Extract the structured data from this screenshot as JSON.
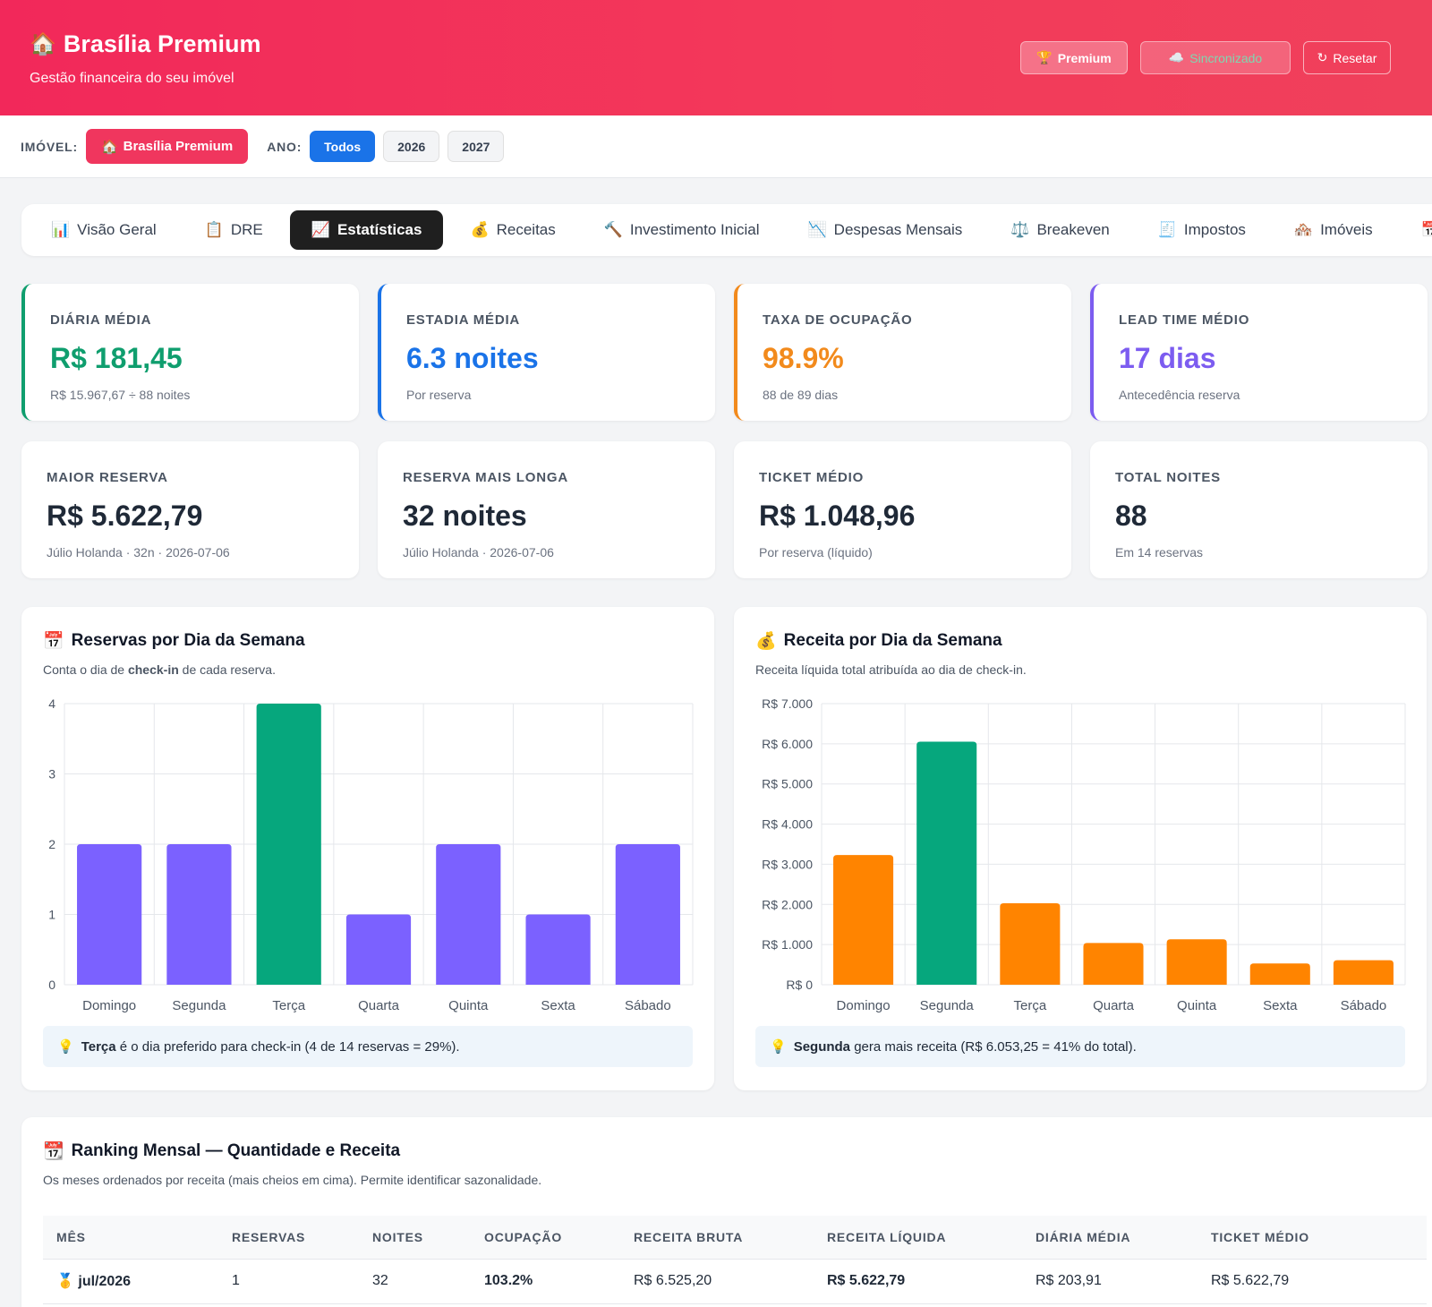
{
  "header": {
    "brand_icon": "🏠",
    "title": "Brasília Premium",
    "subtitle": "Gestão financeira do seu imóvel",
    "buttons": {
      "premium_icon": "🏆",
      "premium": "Premium",
      "sync_icon": "☁️",
      "sync": "Sincronizado",
      "reset_icon": "↻",
      "reset": "Resetar"
    }
  },
  "filters": {
    "property_label": "IMÓVEL:",
    "property_icon": "🏠",
    "property": "Brasília Premium",
    "year_label": "ANO:",
    "years": [
      "Todos",
      "2026",
      "2027"
    ],
    "selected_year": "Todos"
  },
  "tabs": [
    {
      "icon": "📊",
      "label": "Visão Geral"
    },
    {
      "icon": "📋",
      "label": "DRE"
    },
    {
      "icon": "📈",
      "label": "Estatísticas"
    },
    {
      "icon": "💰",
      "label": "Receitas"
    },
    {
      "icon": "🔨",
      "label": "Investimento Inicial"
    },
    {
      "icon": "📉",
      "label": "Despesas Mensais"
    },
    {
      "icon": "⚖️",
      "label": "Breakeven"
    },
    {
      "icon": "🧾",
      "label": "Impostos"
    },
    {
      "icon": "🏘️",
      "label": "Imóveis"
    },
    {
      "icon": "📅",
      "label": ""
    }
  ],
  "active_tab": "Estatísticas",
  "kpis_top": [
    {
      "label": "DIÁRIA MÉDIA",
      "value": "R$ 181,45",
      "sub": "R$ 15.967,67 ÷ 88 noites",
      "color": "#0f9e6e"
    },
    {
      "label": "ESTADIA MÉDIA",
      "value": "6.3 noites",
      "sub": "Por reserva",
      "color": "#1a73e8"
    },
    {
      "label": "TAXA DE OCUPAÇÃO",
      "value": "98.9%",
      "sub": "88 de 89 dias",
      "color": "#f28a1c"
    },
    {
      "label": "LEAD TIME MÉDIO",
      "value": "17 dias",
      "sub": "Antecedência reserva",
      "color": "#7c5cf0"
    }
  ],
  "kpis_bottom": [
    {
      "label": "MAIOR RESERVA",
      "value": "R$ 5.622,79",
      "sub": "Júlio Holanda · 32n · 2026-07-06"
    },
    {
      "label": "RESERVA MAIS LONGA",
      "value": "32 noites",
      "sub": "Júlio Holanda · 2026-07-06"
    },
    {
      "label": "TICKET MÉDIO",
      "value": "R$ 1.048,96",
      "sub": "Por reserva (líquido)"
    },
    {
      "label": "TOTAL NOITES",
      "value": "88",
      "sub": "Em 14 reservas"
    }
  ],
  "charts": {
    "reservas": {
      "icon": "📅",
      "title": "Reservas por Dia da Semana",
      "desc_pre": "Conta o dia de ",
      "desc_bold": "check-in",
      "desc_post": " de cada reserva.",
      "tip_icon": "💡",
      "tip_bold": "Terça",
      "tip_text": " é o dia preferido para check-in (4 de 14 reservas = 29%)."
    },
    "receita": {
      "icon": "💰",
      "title": "Receita por Dia da Semana",
      "desc": "Receita líquida total atribuída ao dia de check-in.",
      "tip_icon": "💡",
      "tip_bold": "Segunda",
      "tip_text": " gera mais receita (R$ 6.053,25 = 41% do total)."
    }
  },
  "chart_data": [
    {
      "type": "bar",
      "title": "Reservas por Dia da Semana",
      "categories": [
        "Domingo",
        "Segunda",
        "Terça",
        "Quarta",
        "Quinta",
        "Sexta",
        "Sábado"
      ],
      "values": [
        2,
        2,
        4,
        1,
        2,
        1,
        2
      ],
      "ylim": [
        0,
        4
      ],
      "yticks": [
        0,
        1,
        2,
        3,
        4
      ],
      "ytick_labels": [
        "0",
        "1",
        "2",
        "3",
        "4"
      ],
      "highlight_index": 2,
      "color": "#7b61ff",
      "highlight_color": "#06a77d",
      "grid": true
    },
    {
      "type": "bar",
      "title": "Receita por Dia da Semana",
      "categories": [
        "Domingo",
        "Segunda",
        "Terça",
        "Quarta",
        "Quinta",
        "Sexta",
        "Sábado"
      ],
      "values": [
        3230,
        6053.25,
        2030,
        1040,
        1130,
        530,
        610
      ],
      "ylim": [
        0,
        7000
      ],
      "yticks": [
        0,
        1000,
        2000,
        3000,
        4000,
        5000,
        6000,
        7000
      ],
      "ytick_labels": [
        "R$ 0",
        "R$ 1.000",
        "R$ 2.000",
        "R$ 3.000",
        "R$ 4.000",
        "R$ 5.000",
        "R$ 6.000",
        "R$ 7.000"
      ],
      "highlight_index": 1,
      "color": "#ff8400",
      "highlight_color": "#06a77d",
      "grid": true
    }
  ],
  "ranking": {
    "icon": "📆",
    "title": "Ranking Mensal — Quantidade e Receita",
    "desc": "Os meses ordenados por receita (mais cheios em cima). Permite identificar sazonalidade.",
    "columns": [
      "MÊS",
      "RESERVAS",
      "NOITES",
      "OCUPAÇÃO",
      "RECEITA BRUTA",
      "RECEITA LÍQUIDA",
      "DIÁRIA MÉDIA",
      "TICKET MÉDIO"
    ],
    "rows": [
      {
        "medal": "🥇",
        "month": "jul/2026",
        "reservas": "1",
        "noites": "32",
        "ocupacao": "103.2%",
        "bruta": "R$ 6.525,20",
        "liquida": "R$ 5.622,79",
        "diaria": "R$ 203,91",
        "ticket": "R$ 5.622,79"
      }
    ]
  }
}
